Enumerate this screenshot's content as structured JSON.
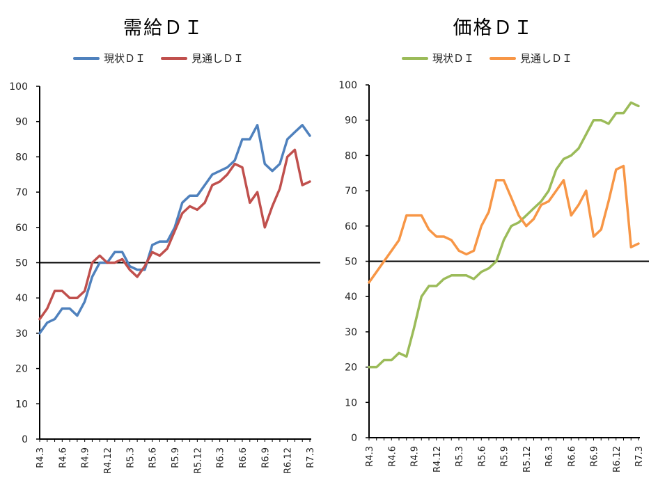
{
  "chart_data": [
    {
      "type": "line",
      "title": "需給ＤＩ",
      "categories": [
        "R4.3",
        "R4.4",
        "R4.5",
        "R4.6",
        "R4.7",
        "R4.8",
        "R4.9",
        "R4.10",
        "R4.11",
        "R4.12",
        "R5.1",
        "R5.2",
        "R5.3",
        "R5.4",
        "R5.5",
        "R5.6",
        "R5.7",
        "R5.8",
        "R5.9",
        "R5.10",
        "R5.11",
        "R5.12",
        "R6.1",
        "R6.2",
        "R6.3",
        "R6.4",
        "R6.5",
        "R6.6",
        "R6.7",
        "R6.8",
        "R6.9",
        "R6.10",
        "R6.11",
        "R6.12",
        "R7.1",
        "R7.2",
        "R7.3"
      ],
      "tick_labels": [
        "R4.3",
        "R4.6",
        "R4.9",
        "R4.12",
        "R5.3",
        "R5.6",
        "R5.9",
        "R5.12",
        "R6.3",
        "R6.6",
        "R6.9",
        "R6.12",
        "R7.3"
      ],
      "ylim": [
        0,
        100
      ],
      "yticks": [
        0,
        10,
        20,
        30,
        40,
        50,
        60,
        70,
        80,
        90,
        100
      ],
      "reference_line": 50,
      "grid": false,
      "legend": "top",
      "series": [
        {
          "name": "現状ＤＩ",
          "color": "#4f81bd",
          "values": [
            30,
            33,
            34,
            37,
            37,
            35,
            39,
            46,
            50,
            50,
            53,
            53,
            49,
            48,
            48,
            55,
            56,
            56,
            60,
            67,
            69,
            69,
            72,
            75,
            76,
            77,
            79,
            85,
            85,
            89,
            78,
            76,
            78,
            85,
            87,
            89,
            86
          ]
        },
        {
          "name": "見通しＤＩ",
          "color": "#c0504d",
          "values": [
            34,
            37,
            42,
            42,
            40,
            40,
            42,
            50,
            52,
            50,
            50,
            51,
            48,
            46,
            49,
            53,
            52,
            54,
            59,
            64,
            66,
            65,
            67,
            72,
            73,
            75,
            78,
            77,
            67,
            70,
            60,
            66,
            71,
            80,
            82,
            72,
            73
          ]
        }
      ]
    },
    {
      "type": "line",
      "title": "価格ＤＩ",
      "categories": [
        "R4.3",
        "R4.4",
        "R4.5",
        "R4.6",
        "R4.7",
        "R4.8",
        "R4.9",
        "R4.10",
        "R4.11",
        "R4.12",
        "R5.1",
        "R5.2",
        "R5.3",
        "R5.4",
        "R5.5",
        "R5.6",
        "R5.7",
        "R5.8",
        "R5.9",
        "R5.10",
        "R5.11",
        "R5.12",
        "R6.1",
        "R6.2",
        "R6.3",
        "R6.4",
        "R6.5",
        "R6.6",
        "R6.7",
        "R6.8",
        "R6.9",
        "R6.10",
        "R6.11",
        "R6.12",
        "R7.1",
        "R7.2",
        "R7.3"
      ],
      "tick_labels": [
        "R4.3",
        "R4.6",
        "R4.9",
        "R4.12",
        "R5.3",
        "R5.6",
        "R5.9",
        "R5.12",
        "R6.3",
        "R6.6",
        "R6.9",
        "R6.12",
        "R7.3"
      ],
      "ylim": [
        0,
        100
      ],
      "yticks": [
        0,
        10,
        20,
        30,
        40,
        50,
        60,
        70,
        80,
        90,
        100
      ],
      "reference_line": 50,
      "grid": false,
      "legend": "top",
      "series": [
        {
          "name": "現状ＤＩ",
          "color": "#9bbb59",
          "values": [
            20,
            20,
            22,
            22,
            24,
            23,
            31,
            40,
            43,
            43,
            45,
            46,
            46,
            46,
            45,
            47,
            48,
            50,
            56,
            60,
            61,
            63,
            65,
            67,
            70,
            76,
            79,
            80,
            82,
            86,
            90,
            90,
            89,
            92,
            92,
            95,
            94
          ]
        },
        {
          "name": "見通しＤＩ",
          "color": "#f79646",
          "values": [
            44,
            47,
            50,
            53,
            56,
            63,
            63,
            63,
            59,
            57,
            57,
            56,
            53,
            52,
            53,
            60,
            64,
            73,
            73,
            68,
            63,
            60,
            62,
            66,
            67,
            70,
            73,
            63,
            66,
            70,
            57,
            59,
            67,
            76,
            77,
            54,
            55
          ]
        }
      ]
    }
  ]
}
